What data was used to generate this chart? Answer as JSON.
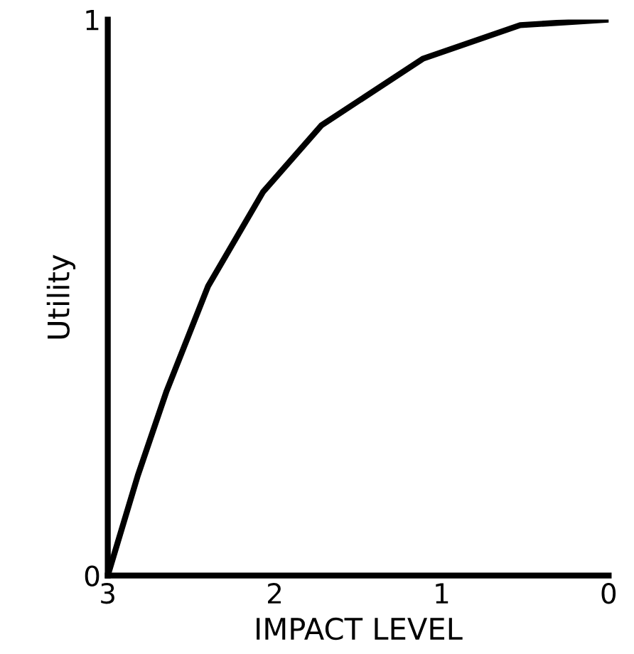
{
  "chart_data": {
    "type": "line",
    "xlabel": "IMPACT LEVEL",
    "ylabel": "Utility",
    "x": [
      3,
      2.82,
      2.65,
      2.4,
      2.07,
      1.72,
      1.11,
      0.53,
      0
    ],
    "series": [
      {
        "color": "#000000",
        "values": [
          0,
          0.18,
          0.33,
          0.52,
          0.69,
          0.81,
          0.93,
          0.99,
          1
        ]
      }
    ],
    "xlim": [
      3,
      0
    ],
    "xticks": [
      3,
      2,
      1,
      0
    ],
    "ylim": [
      0,
      1
    ],
    "yticks": [
      0,
      1
    ],
    "grid": false,
    "legend": false,
    "marker": "none",
    "line_style": "solid"
  }
}
